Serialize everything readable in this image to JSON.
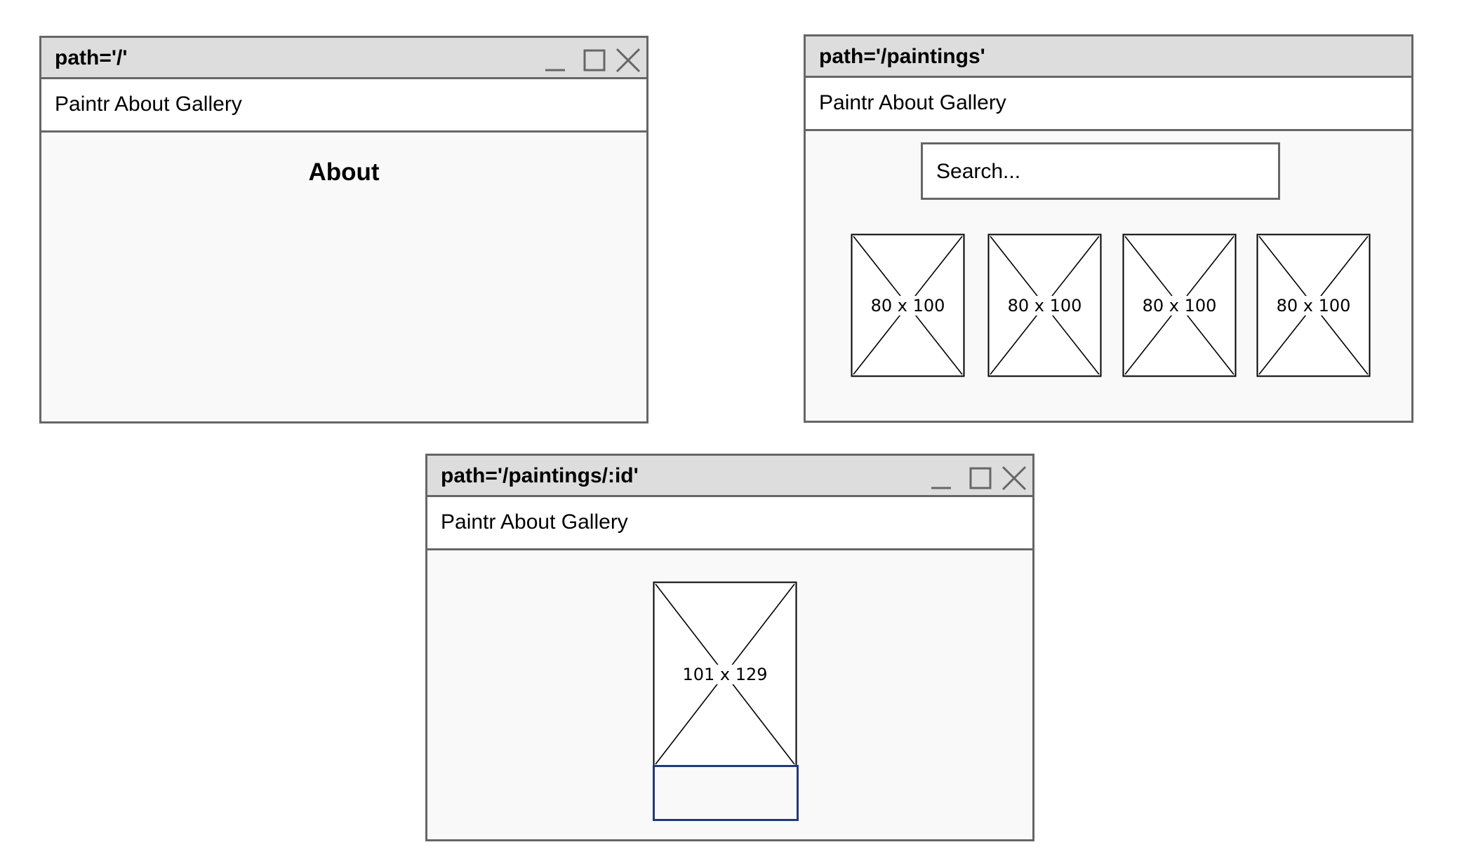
{
  "windows": [
    {
      "title": "path='/'",
      "nav": "Paintr About Gallery",
      "heading": "About"
    },
    {
      "title": "path='/paintings'",
      "nav": "Paintr About Gallery",
      "search_placeholder": "Search...",
      "images": [
        "80 x 100",
        "80 x 100",
        "80 x 100",
        "80 x 100"
      ]
    },
    {
      "title": "path='/paintings/:id'",
      "nav": "Paintr About Gallery",
      "image": "101 x 129"
    }
  ],
  "icons": {
    "minimize": "minimize-icon",
    "maximize": "maximize-icon",
    "close": "close-icon",
    "image_placeholder": "image-placeholder-icon"
  },
  "colors": {
    "window_border": "#666666",
    "titlebar_bg": "#dddddd",
    "content_bg": "#f9f9f9",
    "caption_border": "#1f3a7a"
  }
}
